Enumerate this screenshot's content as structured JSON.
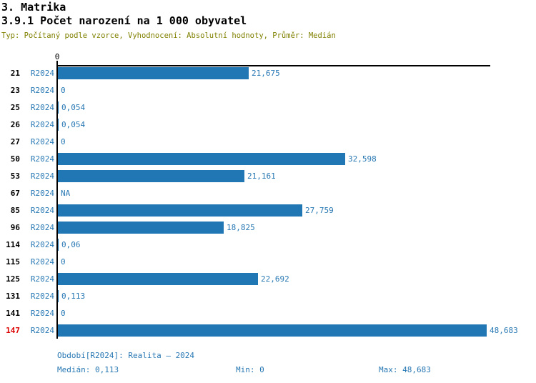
{
  "header": {
    "title": "3. Matrika",
    "subtitle": "3.9.1 Počet narození na 1 000 obyvatel",
    "meta": "Typ: Počítaný podle vzorce, Vyhodnocení: Absolutní hodnoty, Průměr: Medián"
  },
  "colors": {
    "bar_blue": "#2077b4",
    "text_blue": "#2878b4",
    "meta_olive": "#808000",
    "highlight_red": "#dd0000",
    "axis_black": "#000000"
  },
  "chart_data": {
    "type": "bar",
    "orientation": "horizontal",
    "title": "3.9.1 Počet narození na 1 000 obyvatel",
    "axis": {
      "zero_label": "0",
      "min": 0,
      "max": 49,
      "grid": false
    },
    "series_label": "R2024",
    "rows": [
      {
        "id": "21",
        "series": "R2024",
        "value": 21.675,
        "label": "21,675",
        "highlight": false
      },
      {
        "id": "23",
        "series": "R2024",
        "value": 0,
        "label": "0",
        "highlight": false
      },
      {
        "id": "25",
        "series": "R2024",
        "value": 0.054,
        "label": "0,054",
        "highlight": false
      },
      {
        "id": "26",
        "series": "R2024",
        "value": 0.054,
        "label": "0,054",
        "highlight": false
      },
      {
        "id": "27",
        "series": "R2024",
        "value": 0,
        "label": "0",
        "highlight": false
      },
      {
        "id": "50",
        "series": "R2024",
        "value": 32.598,
        "label": "32,598",
        "highlight": false
      },
      {
        "id": "53",
        "series": "R2024",
        "value": 21.161,
        "label": "21,161",
        "highlight": false
      },
      {
        "id": "67",
        "series": "R2024",
        "value": null,
        "label": "NA",
        "highlight": false
      },
      {
        "id": "85",
        "series": "R2024",
        "value": 27.759,
        "label": "27,759",
        "highlight": false
      },
      {
        "id": "96",
        "series": "R2024",
        "value": 18.825,
        "label": "18,825",
        "highlight": false
      },
      {
        "id": "114",
        "series": "R2024",
        "value": 0.06,
        "label": "0,06",
        "highlight": false
      },
      {
        "id": "115",
        "series": "R2024",
        "value": 0,
        "label": "0",
        "highlight": false
      },
      {
        "id": "125",
        "series": "R2024",
        "value": 22.692,
        "label": "22,692",
        "highlight": false
      },
      {
        "id": "131",
        "series": "R2024",
        "value": 0.113,
        "label": "0,113",
        "highlight": false
      },
      {
        "id": "141",
        "series": "R2024",
        "value": 0,
        "label": "0",
        "highlight": false
      },
      {
        "id": "147",
        "series": "R2024",
        "value": 48.683,
        "label": "48,683",
        "highlight": true
      }
    ]
  },
  "footer": {
    "period": "Období[R2024]: Realita – 2024",
    "median": "Medián: 0,113",
    "min": "Min: 0",
    "max": "Max: 48,683"
  }
}
